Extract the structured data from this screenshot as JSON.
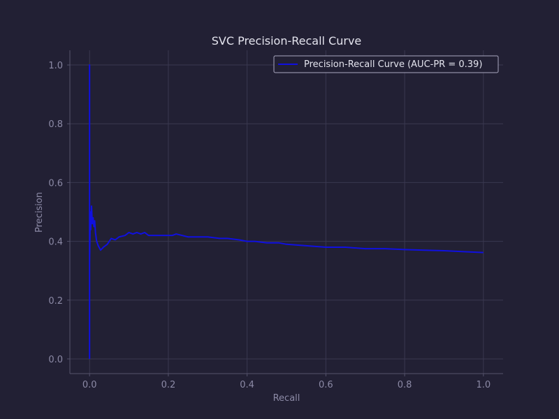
{
  "chart_data": {
    "type": "line",
    "title": "SVC Precision-Recall Curve",
    "xlabel": "Recall",
    "ylabel": "Precision",
    "xlim": [
      -0.05,
      1.05
    ],
    "ylim": [
      -0.05,
      1.05
    ],
    "xticks": [
      0.0,
      0.2,
      0.4,
      0.6,
      0.8,
      1.0
    ],
    "yticks": [
      0.0,
      0.2,
      0.4,
      0.6,
      0.8,
      1.0
    ],
    "xtick_labels": [
      "0.0",
      "0.2",
      "0.4",
      "0.6",
      "0.8",
      "1.0"
    ],
    "ytick_labels": [
      "0.0",
      "0.2",
      "0.4",
      "0.6",
      "0.8",
      "1.0"
    ],
    "grid": true,
    "legend": "top-right",
    "series": [
      {
        "name": "Precision-Recall Curve (AUC-PR = 0.39)",
        "color": "#1010e0",
        "x": [
          0.0,
          0.0,
          0.0,
          0.002,
          0.003,
          0.005,
          0.007,
          0.009,
          0.011,
          0.013,
          0.015,
          0.018,
          0.022,
          0.028,
          0.035,
          0.045,
          0.055,
          0.065,
          0.075,
          0.09,
          0.1,
          0.11,
          0.12,
          0.13,
          0.14,
          0.15,
          0.17,
          0.19,
          0.21,
          0.22,
          0.25,
          0.28,
          0.3,
          0.33,
          0.35,
          0.38,
          0.4,
          0.42,
          0.45,
          0.48,
          0.5,
          0.55,
          0.6,
          0.65,
          0.7,
          0.75,
          0.8,
          0.85,
          0.9,
          0.95,
          1.0
        ],
        "y": [
          0.0,
          1.0,
          0.33,
          0.5,
          0.44,
          0.52,
          0.46,
          0.48,
          0.45,
          0.47,
          0.43,
          0.4,
          0.385,
          0.37,
          0.38,
          0.39,
          0.41,
          0.405,
          0.415,
          0.42,
          0.43,
          0.425,
          0.43,
          0.425,
          0.43,
          0.42,
          0.42,
          0.42,
          0.42,
          0.425,
          0.415,
          0.415,
          0.415,
          0.41,
          0.41,
          0.405,
          0.4,
          0.4,
          0.395,
          0.395,
          0.39,
          0.385,
          0.38,
          0.38,
          0.375,
          0.375,
          0.372,
          0.37,
          0.368,
          0.365,
          0.362
        ]
      }
    ]
  }
}
